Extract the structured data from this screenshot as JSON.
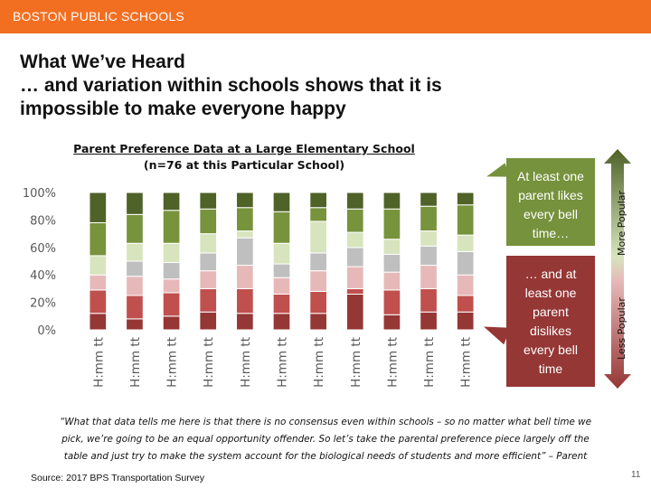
{
  "header": {
    "org_name": "BOSTON PUBLIC SCHOOLS"
  },
  "slide": {
    "title_lines": [
      "What We’ve Heard",
      "… and variation within schools shows that it is",
      "impossible to make everyone happy"
    ],
    "chart_title_lines": [
      "Parent Preference Data at a Large Elementary School",
      "(n=76 at this Particular School)"
    ],
    "callout_green": [
      "At least one",
      "parent likes",
      "every bell",
      "time…"
    ],
    "callout_red": [
      "… and at",
      "least one",
      "parent",
      "dislikes",
      "every bell",
      "time"
    ],
    "more_popular_label": "More Popular",
    "less_popular_label": "Less Popular",
    "quote_lines": [
      "“What that data tells me here is that there is no consensus even within schools – so no matter what bell time we",
      "pick, we’re going to be an equal opportunity offender. So let’s take the parental preference piece largely off the",
      "table and just try to make the system account for the biological needs of students and more efficient” – Parent"
    ],
    "source": "Source: 2017 BPS Transportation Survey",
    "page_number": "11"
  },
  "colors": {
    "accent": "#f26f21",
    "callout_green": "#76923c",
    "callout_red": "#953735",
    "segments": [
      "#953735",
      "#c0504d",
      "#e6b9b8",
      "#bfbfbf",
      "#d7e4bd",
      "#77933c",
      "#4f6228"
    ]
  },
  "chart_data": {
    "type": "bar",
    "stacked": true,
    "categories": [
      "H:mm tt",
      "H:mm tt",
      "H:mm tt",
      "H:mm tt",
      "H:mm tt",
      "H:mm tt",
      "H:mm tt",
      "H:mm tt",
      "H:mm tt",
      "H:mm tt",
      "H:mm tt"
    ],
    "ylim": [
      0,
      100
    ],
    "yticks": [
      "0%",
      "20%",
      "40%",
      "60%",
      "80%",
      "100%"
    ],
    "series": [
      {
        "values": [
          12,
          8,
          10,
          13,
          12,
          12,
          12,
          26,
          11,
          13,
          13
        ]
      },
      {
        "values": [
          17,
          17,
          17,
          17,
          18,
          14,
          16,
          4,
          18,
          17,
          12
        ]
      },
      {
        "values": [
          11,
          14,
          10,
          13,
          17,
          12,
          15,
          16,
          13,
          17,
          15
        ]
      },
      {
        "values": [
          0,
          11,
          12,
          13,
          20,
          10,
          13,
          14,
          13,
          14,
          17
        ]
      },
      {
        "values": [
          14,
          13,
          14,
          14,
          5,
          15,
          23,
          11,
          11,
          11,
          12
        ]
      },
      {
        "values": [
          24,
          21,
          24,
          18,
          17,
          23,
          10,
          17,
          22,
          18,
          22
        ]
      },
      {
        "values": [
          22,
          16,
          13,
          12,
          11,
          14,
          11,
          12,
          12,
          10,
          9
        ]
      }
    ]
  }
}
